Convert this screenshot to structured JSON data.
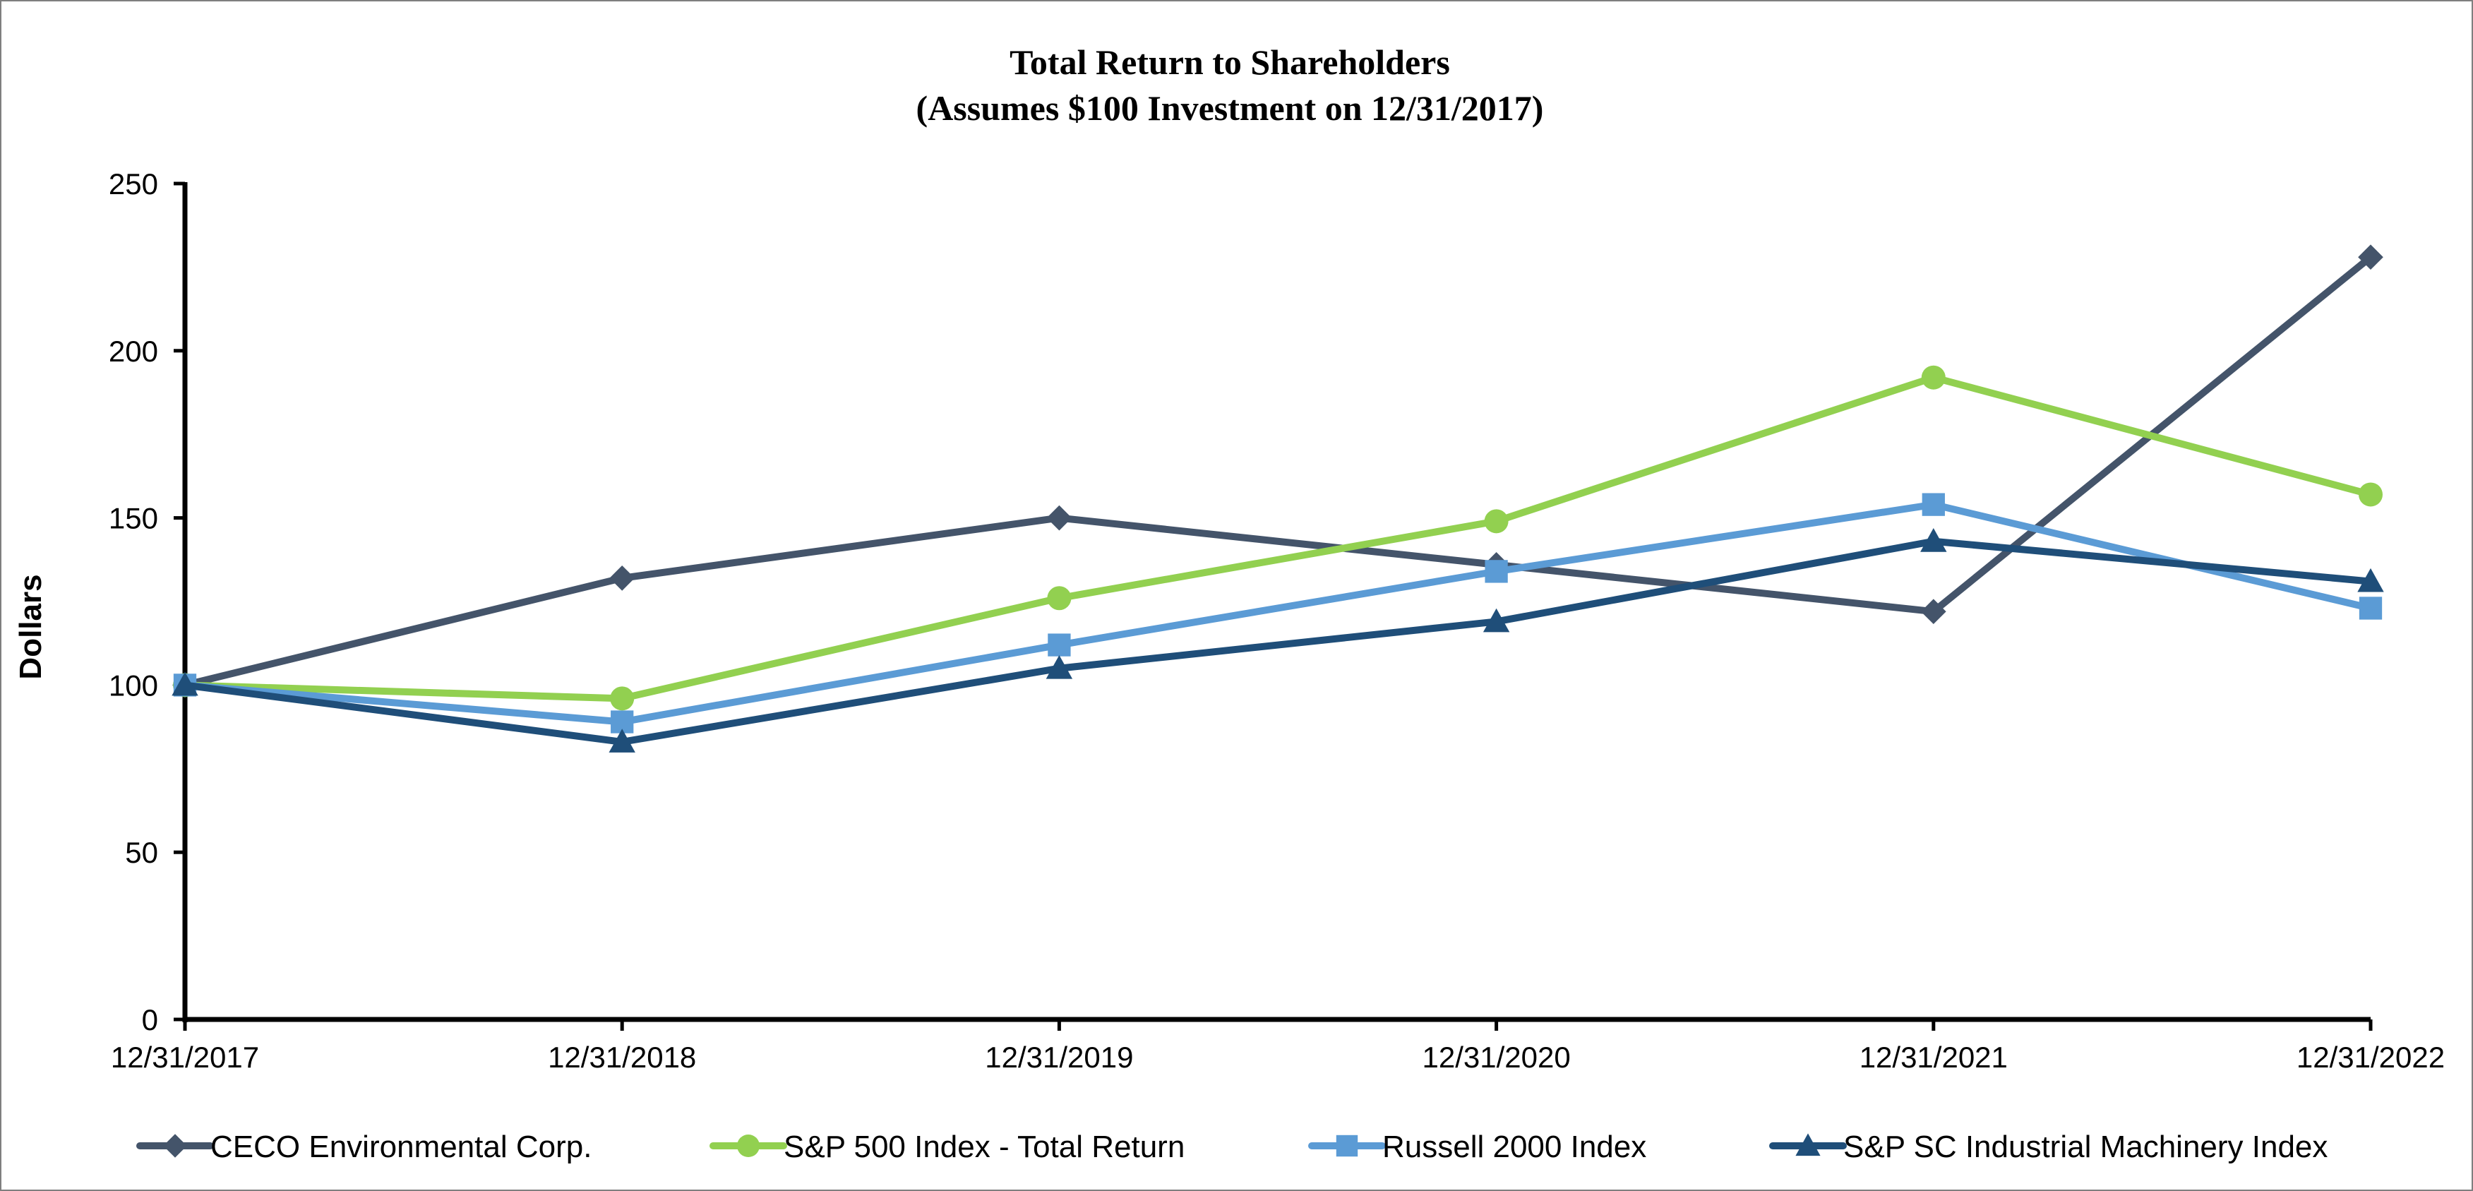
{
  "chart_data": {
    "type": "line",
    "title": "Total Return to Shareholders",
    "subtitle": "(Assumes $100 Investment on 12/31/2017)",
    "xlabel": "",
    "ylabel": "Dollars",
    "categories": [
      "12/31/2017",
      "12/31/2018",
      "12/31/2019",
      "12/31/2020",
      "12/31/2021",
      "12/31/2022"
    ],
    "ylim": [
      0,
      250
    ],
    "yticks": [
      0,
      50,
      100,
      150,
      200,
      250
    ],
    "grid": false,
    "legend_position": "bottom",
    "series": [
      {
        "name": "CECO Environmental Corp.",
        "color": "#44546a",
        "marker": "diamond",
        "values": [
          100,
          132,
          150,
          136,
          122,
          228
        ]
      },
      {
        "name": "S&P 500 Index - Total Return",
        "color": "#92d050",
        "marker": "circle",
        "values": [
          100,
          96,
          126,
          149,
          192,
          157
        ]
      },
      {
        "name": "Russell 2000 Index",
        "color": "#5b9bd5",
        "marker": "square",
        "values": [
          100,
          89,
          112,
          134,
          154,
          123
        ]
      },
      {
        "name": "S&P SC Industrial Machinery Index",
        "color": "#1f4e79",
        "marker": "triangle",
        "values": [
          100,
          83,
          105,
          119,
          143,
          131
        ]
      }
    ]
  }
}
